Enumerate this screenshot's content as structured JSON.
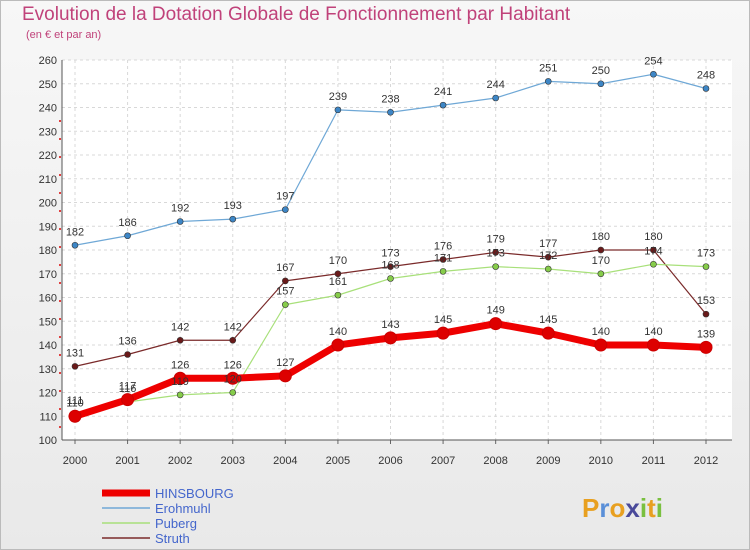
{
  "chart_data": {
    "type": "line",
    "title": "Evolution de la Dotation Globale de Fonctionnement par Habitant",
    "subtitle": "(en € et par an)",
    "x": [
      "2000",
      "2001",
      "2002",
      "2003",
      "2004",
      "2005",
      "2006",
      "2007",
      "2008",
      "2009",
      "2010",
      "2011",
      "2012"
    ],
    "ylim": [
      100,
      260
    ],
    "yticks": [
      100,
      110,
      120,
      130,
      140,
      150,
      160,
      170,
      180,
      190,
      200,
      210,
      220,
      230,
      240,
      250,
      260
    ],
    "grid": true,
    "series": [
      {
        "name": "Erohmuhl",
        "color": "#6fa8d6",
        "marker": "#3d86c6",
        "width": 1.2,
        "values": [
          182,
          186,
          192,
          193,
          197,
          239,
          238,
          241,
          244,
          251,
          250,
          254,
          248
        ]
      },
      {
        "name": "Struth",
        "color": "#7a2a2a",
        "marker": "#6a1a1a",
        "width": 1.2,
        "values": [
          131,
          136,
          142,
          142,
          167,
          170,
          173,
          176,
          179,
          177,
          180,
          180,
          153
        ]
      },
      {
        "name": "Puberg",
        "color": "#a8e07a",
        "marker": "#86cc4a",
        "width": 1.2,
        "values": [
          111,
          116,
          119,
          120,
          157,
          161,
          168,
          171,
          173,
          172,
          170,
          174,
          173
        ]
      },
      {
        "name": "HINSBOURG",
        "color": "#ee0000",
        "marker": "#dd0000",
        "width": 7,
        "values": [
          110,
          117,
          126,
          126,
          127,
          140,
          143,
          145,
          149,
          145,
          140,
          140,
          139
        ]
      }
    ],
    "legend": [
      {
        "name": "HINSBOURG",
        "color": "#ee0000",
        "text_color": "#4466cc"
      },
      {
        "name": "Erohmuhl",
        "color": "#6fa8d6",
        "text_color": "#4466cc"
      },
      {
        "name": "Puberg",
        "color": "#a8e07a",
        "text_color": "#4466cc"
      },
      {
        "name": "Struth",
        "color": "#7a2a2a",
        "text_color": "#4466cc"
      }
    ],
    "legend_position": "bottom-left"
  },
  "logo": {
    "letters": [
      "P",
      "r",
      "o",
      "x",
      "i",
      "t",
      "i"
    ],
    "colors": [
      "#e8a020",
      "#5a8fd8",
      "#e8a020",
      "#4a4a9a",
      "#7ac040",
      "#e8a020",
      "#7ac040"
    ]
  }
}
